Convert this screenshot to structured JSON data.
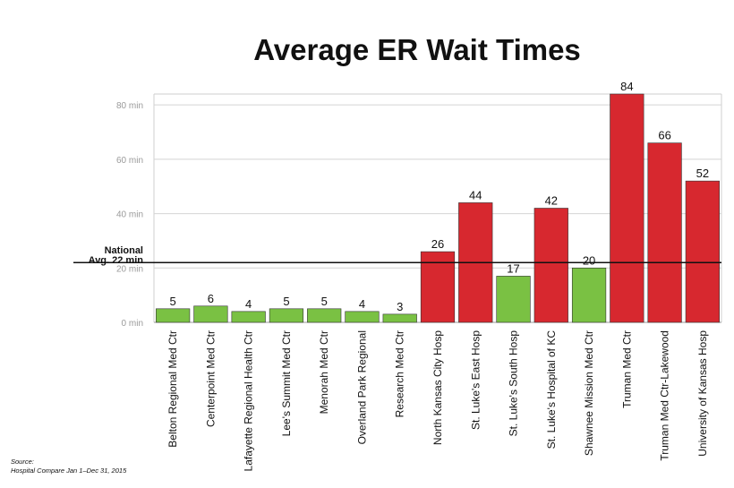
{
  "chart_data": {
    "type": "bar",
    "title": "Average ER Wait Times",
    "xlabel": "",
    "ylabel": "",
    "ylim": [
      0,
      84
    ],
    "yticks": [
      {
        "value": 0,
        "label": "0 min"
      },
      {
        "value": 20,
        "label": "20 min"
      },
      {
        "value": 40,
        "label": "40 min"
      },
      {
        "value": 60,
        "label": "60 min"
      },
      {
        "value": 80,
        "label": "80 min"
      }
    ],
    "grid": true,
    "categories": [
      "Belton Regional Med Ctr",
      "Centerpoint Med Ctr",
      "Lafayette Regional Health Ctr",
      "Lee's Summit Med Ctr",
      "Menorah Med Ctr",
      "Overland Park Regional",
      "Research Med Ctr",
      "North Kansas City Hosp",
      "St. Luke's East Hosp",
      "St. Luke's South Hosp",
      "St. Luke's Hospital of KC",
      "Shawnee Mission Med Ctr",
      "Truman Med Ctr",
      "Truman Med Ctr-Lakewood",
      "University of Kansas Hosp"
    ],
    "values": [
      5,
      6,
      4,
      5,
      5,
      4,
      3,
      26,
      44,
      17,
      42,
      20,
      84,
      66,
      52
    ],
    "data_labels": [
      "5",
      "6",
      "4",
      "5",
      "5",
      "4",
      "3",
      "26",
      "44",
      "17",
      "42",
      "20",
      "84",
      "66",
      "52"
    ],
    "colors": {
      "below_average": "#7ac143",
      "above_average": "#d7282f"
    },
    "reference_line": {
      "value": 22,
      "label_line1": "National",
      "label_line2": "Avg. 22 min"
    },
    "source_line1": "Source:",
    "source_line2": "Hospital Compare Jan 1–Dec 31, 2015"
  }
}
